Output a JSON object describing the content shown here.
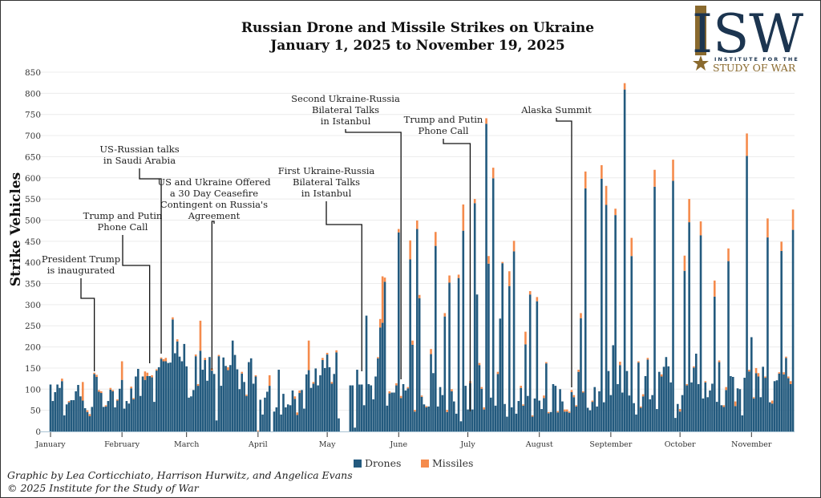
{
  "colors": {
    "drones": "#235a7e",
    "missiles": "#f58b4c",
    "grid": "#ececec",
    "text": "#222222",
    "logo_navy": "#1c3550",
    "logo_gold": "#8a6a2e"
  },
  "logo": {
    "mark": "ISW",
    "line1": "INSTITUTE FOR THE",
    "line2": "STUDY OF WAR"
  },
  "credits": {
    "line1": "Graphic by Lea Corticchiato, Harrison Hurwitz, and Angelica Evans",
    "line2": "© 2025 Institute for the Study of War"
  },
  "chart_data": {
    "type": "bar",
    "stacked": true,
    "title": "Russian Drone and Missile Strikes on Ukraine",
    "subtitle": "January 1, 2025 to November 19, 2025",
    "xlabel": "",
    "ylabel": "Strike Vehicles",
    "ylim": [
      0,
      850
    ],
    "yticks": [
      0,
      50,
      100,
      150,
      200,
      250,
      300,
      350,
      400,
      450,
      500,
      550,
      600,
      650,
      700,
      750,
      800,
      850
    ],
    "grid": true,
    "legend_position": "bottom-center",
    "x_start": "2025-01-01",
    "x_end": "2025-11-19",
    "x_ticks": [
      {
        "label": "January",
        "day": 0
      },
      {
        "label": "February",
        "day": 31
      },
      {
        "label": "March",
        "day": 59
      },
      {
        "label": "April",
        "day": 90
      },
      {
        "label": "May",
        "day": 120
      },
      {
        "label": "June",
        "day": 151
      },
      {
        "label": "July",
        "day": 181
      },
      {
        "label": "August",
        "day": 212
      },
      {
        "label": "September",
        "day": 243
      },
      {
        "label": "October",
        "day": 273
      },
      {
        "label": "November",
        "day": 304
      }
    ],
    "series": [
      {
        "name": "Drones",
        "values": [
          111,
          72,
          93,
          111,
          103,
          119,
          38,
          64,
          69,
          74,
          74,
          95,
          110,
          83,
          73,
          55,
          46,
          36,
          58,
          136,
          129,
          94,
          91,
          58,
          59,
          72,
          99,
          95,
          57,
          73,
          101,
          122,
          54,
          72,
          66,
          102,
          76,
          130,
          148,
          84,
          130,
          122,
          131,
          131,
          128,
          70,
          144,
          152,
          172,
          166,
          166,
          162,
          163,
          265,
          185,
          213,
          177,
          166,
          207,
          154,
          80,
          83,
          98,
          178,
          108,
          191,
          146,
          169,
          120,
          176,
          144,
          136,
          26,
          178,
          108,
          175,
          155,
          145,
          157,
          215,
          181,
          147,
          100,
          137,
          117,
          84,
          164,
          173,
          113,
          130,
          0,
          75,
          40,
          80,
          94,
          108,
          0,
          47,
          57,
          146,
          40,
          89,
          57,
          64,
          62,
          97,
          77,
          39,
          91,
          98,
          54,
          135,
          145,
          103,
          113,
          149,
          109,
          133,
          169,
          150,
          182,
          152,
          113,
          136,
          187,
          31,
          0,
          0,
          0,
          0,
          109,
          109,
          9,
          146,
          111,
          111,
          62,
          274,
          112,
          109,
          76,
          130,
          173,
          246,
          257,
          354,
          61,
          90,
          92,
          92,
          109,
          471,
          79,
          112,
          97,
          102,
          407,
          205,
          47,
          479,
          315,
          82,
          64,
          57,
          59,
          183,
          138,
          439,
          59,
          105,
          86,
          272,
          46,
          352,
          95,
          71,
          42,
          363,
          24,
          475,
          108,
          52,
          114,
          52,
          540,
          324,
          157,
          101,
          52,
          728,
          397,
          80,
          599,
          61,
          136,
          267,
          398,
          65,
          35,
          344,
          57,
          426,
          42,
          72,
          103,
          61,
          206,
          84,
          324,
          35,
          78,
          308,
          73,
          53,
          79,
          161,
          43,
          46,
          112,
          108,
          45,
          100,
          71,
          47,
          47,
          44,
          93,
          81,
          59,
          141,
          268,
          92,
          575,
          56,
          50,
          70,
          105,
          59,
          95,
          598,
          69,
          536,
          143,
          86,
          204,
          512,
          112,
          157,
          92,
          809,
          143,
          85,
          415,
          67,
          40,
          163,
          56,
          83,
          131,
          170,
          76,
          86,
          579,
          53,
          141,
          130,
          153,
          176,
          154,
          116,
          593,
          32,
          65,
          47,
          86,
          380,
          109,
          495,
          116,
          151,
          184,
          112,
          464,
          78,
          116,
          81,
          97,
          113,
          319,
          70,
          164,
          62,
          58,
          98,
          403,
          131,
          129,
          60,
          102,
          100,
          38,
          127,
          652,
          142,
          223,
          78,
          138,
          130,
          81,
          153,
          127,
          459,
          69,
          66,
          119,
          121,
          137,
          427,
          135,
          174,
          126,
          112,
          477
        ]
      },
      {
        "name": "Missiles",
        "values": [
          0,
          0,
          0,
          0,
          0,
          6,
          0,
          0,
          3,
          0,
          0,
          0,
          0,
          0,
          44,
          0,
          4,
          5,
          0,
          3,
          5,
          4,
          4,
          0,
          3,
          0,
          4,
          3,
          0,
          3,
          0,
          44,
          0,
          0,
          0,
          4,
          3,
          0,
          0,
          0,
          0,
          20,
          8,
          0,
          5,
          0,
          3,
          0,
          3,
          5,
          8,
          0,
          0,
          5,
          0,
          5,
          0,
          0,
          0,
          0,
          0,
          0,
          0,
          4,
          4,
          71,
          0,
          5,
          0,
          0,
          5,
          0,
          0,
          3,
          0,
          0,
          0,
          7,
          0,
          0,
          0,
          0,
          0,
          4,
          0,
          3,
          0,
          0,
          0,
          3,
          2,
          0,
          0,
          0,
          0,
          25,
          0,
          0,
          0,
          0,
          0,
          0,
          0,
          0,
          0,
          0,
          6,
          6,
          6,
          0,
          0,
          0,
          70,
          0,
          4,
          0,
          0,
          0,
          5,
          0,
          4,
          0,
          4,
          0,
          5,
          0,
          0,
          0,
          0,
          0,
          0,
          0,
          0,
          0,
          0,
          0,
          0,
          0,
          0,
          0,
          0,
          0,
          3,
          20,
          110,
          10,
          0,
          5,
          0,
          0,
          5,
          8,
          5,
          0,
          0,
          3,
          45,
          10,
          4,
          20,
          8,
          3,
          0,
          3,
          0,
          12,
          0,
          33,
          0,
          0,
          0,
          8,
          5,
          17,
          5,
          0,
          0,
          8,
          0,
          62,
          0,
          0,
          5,
          0,
          10,
          0,
          5,
          4,
          5,
          13,
          18,
          0,
          25,
          0,
          5,
          0,
          3,
          0,
          0,
          35,
          0,
          25,
          0,
          0,
          5,
          3,
          30,
          0,
          8,
          3,
          0,
          10,
          0,
          0,
          6,
          3,
          3,
          0,
          0,
          0,
          3,
          0,
          0,
          5,
          5,
          3,
          5,
          5,
          3,
          5,
          12,
          3,
          40,
          0,
          0,
          3,
          0,
          0,
          0,
          32,
          0,
          45,
          0,
          0,
          0,
          15,
          0,
          8,
          0,
          15,
          0,
          0,
          43,
          0,
          0,
          3,
          3,
          5,
          0,
          4,
          0,
          0,
          40,
          0,
          0,
          5,
          0,
          0,
          0,
          0,
          50,
          0,
          0,
          6,
          0,
          36,
          3,
          55,
          0,
          3,
          0,
          0,
          33,
          0,
          3,
          0,
          0,
          0,
          38,
          0,
          4,
          0,
          4,
          7,
          30,
          0,
          0,
          11,
          0,
          0,
          0,
          0,
          53,
          4,
          0,
          3,
          12,
          8,
          0,
          0,
          3,
          45,
          0,
          7,
          0,
          0,
          3,
          22,
          5,
          3,
          4,
          7,
          48
        ]
      }
    ],
    "annotations": [
      {
        "text": [
          "President Trump",
          "is inaugurated"
        ],
        "day": 19
      },
      {
        "text": [
          "Trump and Putin",
          "Phone Call"
        ],
        "day": 43
      },
      {
        "text": [
          "US-Russian talks",
          "in Saudi Arabia"
        ],
        "day": 48
      },
      {
        "text": [
          "US and Ukraine Offered",
          "a 30 Day Ceasefire",
          "Contingent on Russia's",
          "Agreement"
        ],
        "day": 70
      },
      {
        "text": [
          "First Ukraine-Russia",
          "Bilateral Talks",
          "in Istanbul"
        ],
        "day": 135
      },
      {
        "text": [
          "Second Ukraine-Russia",
          "Bilateral Talks",
          "in Istanbul"
        ],
        "day": 152
      },
      {
        "text": [
          "Trump and Putin",
          "Phone Call"
        ],
        "day": 182
      },
      {
        "text": [
          "Alaska Summit"
        ],
        "day": 226
      }
    ]
  }
}
